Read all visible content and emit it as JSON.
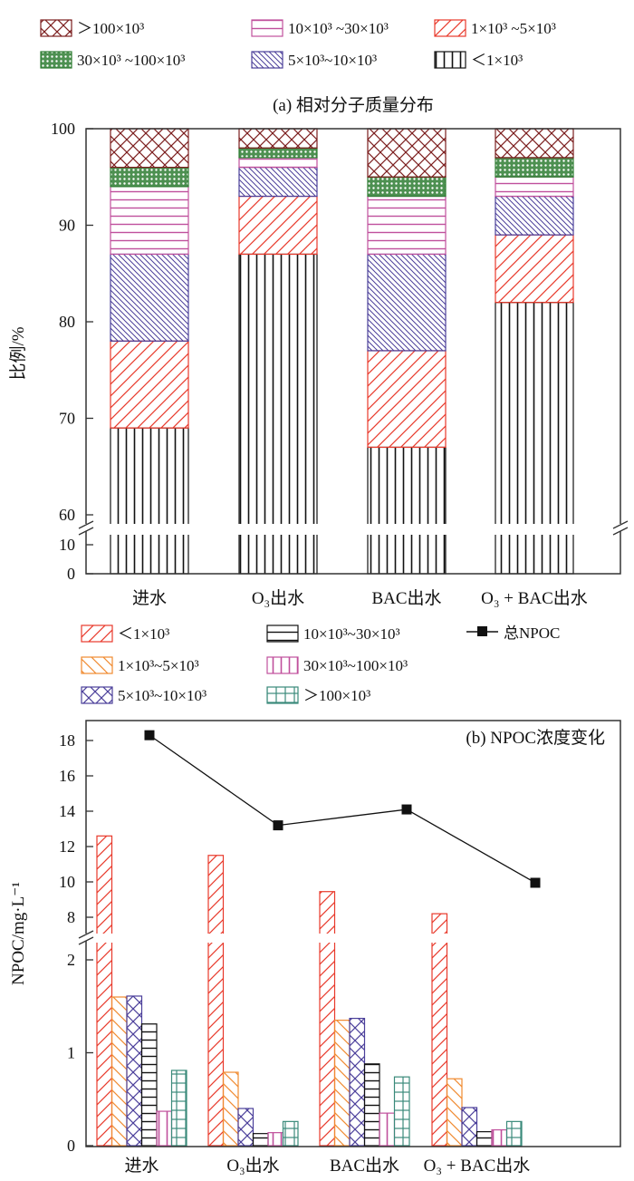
{
  "chart_data": [
    {
      "type": "stacked-bar",
      "title": "(a) 相对分子质量分布",
      "ylabel": "比例/%",
      "ylim": [
        0,
        100
      ],
      "y_axis_break": [
        10,
        60
      ],
      "yticks": [
        "0",
        "10",
        "60",
        "70",
        "80",
        "90",
        "100"
      ],
      "categories": [
        "进水",
        "O₃出水",
        "BAC出水",
        "O₃ + BAC出水"
      ],
      "legend_position": "top",
      "series": [
        {
          "name": "＜1×10³",
          "color": "#111111",
          "pattern": "vertical",
          "values": [
            69,
            87,
            67,
            82
          ]
        },
        {
          "name": "1×10³ ~5×10³",
          "color": "#e8392b",
          "pattern": "diagonal",
          "values": [
            9,
            6,
            10,
            7
          ]
        },
        {
          "name": "5×10³~10×10³",
          "color": "#4b3f9a",
          "pattern": "backdiagonal-dense",
          "values": [
            9,
            3,
            10,
            4
          ]
        },
        {
          "name": "10×10³ ~30×10³",
          "color": "#c0509c",
          "pattern": "horizontal",
          "values": [
            7,
            1,
            6,
            2
          ]
        },
        {
          "name": "30×10³ ~100×10³",
          "color": "#2e7d32",
          "pattern": "dense-cross",
          "values": [
            2,
            1,
            2,
            2
          ]
        },
        {
          "name": "＞100×10³",
          "color": "#7b1e1e",
          "pattern": "crosshatch",
          "values": [
            4,
            2,
            5,
            3
          ]
        }
      ],
      "legend_order": [
        5,
        3,
        1,
        4,
        2,
        0
      ]
    },
    {
      "type": "bar+line",
      "title": "(b) NPOC浓度变化",
      "ylabel": "NPOC/mg·L⁻¹",
      "y_axis_break": [
        2,
        8
      ],
      "yticks": [
        "0",
        "1",
        "2",
        "8",
        "10",
        "12",
        "14",
        "16",
        "18"
      ],
      "categories": [
        "进水",
        "O₃出水",
        "BAC出水",
        "O₃ + BAC出水"
      ],
      "legend_position": "top",
      "series": [
        {
          "name": "＜1×10³",
          "color": "#e8392b",
          "pattern": "diagonal",
          "values": [
            12.6,
            11.5,
            9.45,
            8.2
          ]
        },
        {
          "name": "1×10³~5×10³",
          "color": "#f08a30",
          "pattern": "backdiagonal",
          "values": [
            1.6,
            0.79,
            1.35,
            0.72
          ]
        },
        {
          "name": "5×10³~10×10³",
          "color": "#4b3f9a",
          "pattern": "crosshatch",
          "values": [
            1.61,
            0.4,
            1.37,
            0.41
          ]
        },
        {
          "name": "10×10³~30×10³",
          "color": "#111111",
          "pattern": "horizontal",
          "values": [
            1.31,
            0.13,
            0.88,
            0.15
          ]
        },
        {
          "name": "30×10³~100×10³",
          "color": "#c0509c",
          "pattern": "vertical",
          "values": [
            0.37,
            0.14,
            0.35,
            0.17
          ]
        },
        {
          "name": "＞100×10³",
          "color": "#3a8a7a",
          "pattern": "grid",
          "values": [
            0.81,
            0.26,
            0.74,
            0.26
          ]
        }
      ],
      "line": {
        "name": "总NPOC",
        "color": "#111111",
        "values": [
          18.3,
          13.2,
          14.1,
          9.95
        ]
      },
      "legend_order": [
        0,
        3,
        "line",
        1,
        4,
        2,
        5
      ]
    }
  ]
}
